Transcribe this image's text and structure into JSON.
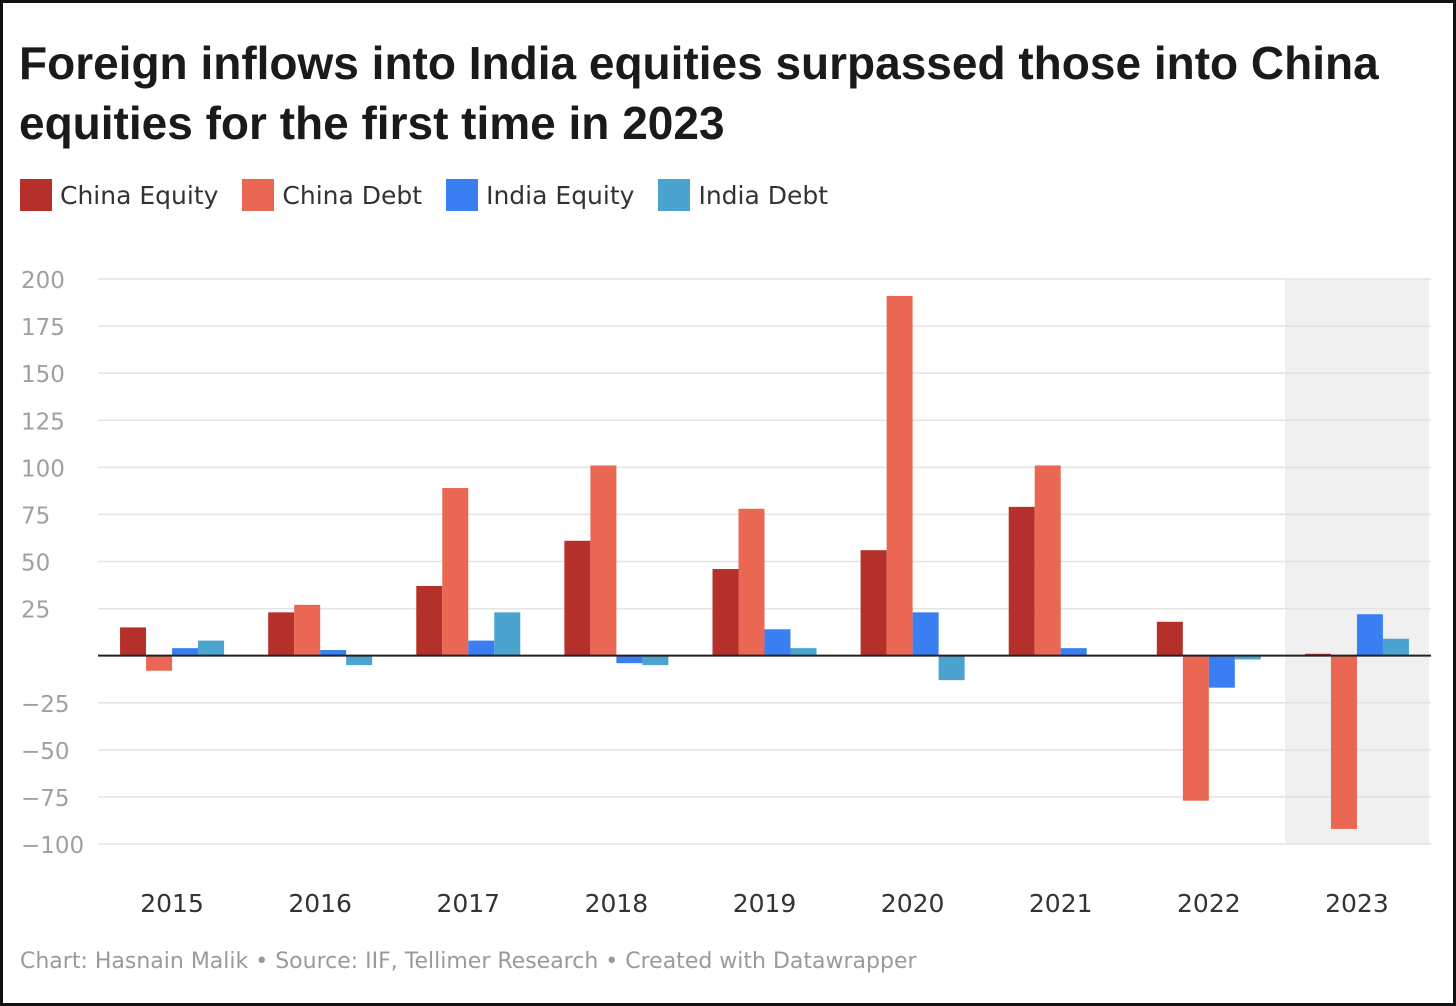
{
  "title": "Foreign inflows into India equities surpassed those into China equities for the first time in 2023",
  "footer": "Chart: Hasnain Malik • Source: IIF, Tellimer Research • Created with Datawrapper",
  "chart_data": {
    "type": "bar",
    "title": "Foreign inflows into India equities surpassed those into China equities for the first time in 2023",
    "xlabel": "",
    "ylabel": "",
    "ylim": [
      -100,
      200
    ],
    "yticks": [
      200,
      175,
      150,
      125,
      100,
      75,
      50,
      25,
      0,
      -25,
      -50,
      -75,
      -100
    ],
    "ytick_labels": [
      "200",
      "175",
      "150",
      "125",
      "100",
      "75",
      "50",
      "25",
      "",
      "−25",
      "−50",
      "−75",
      "−100"
    ],
    "grid": true,
    "legend_position": "top-left",
    "highlighted_category": "2023",
    "categories": [
      "2015",
      "2016",
      "2017",
      "2018",
      "2019",
      "2020",
      "2021",
      "2022",
      "2023"
    ],
    "series": [
      {
        "name": "China Equity",
        "color": "#b5302a",
        "values": [
          15,
          23,
          37,
          61,
          46,
          56,
          79,
          18,
          1
        ]
      },
      {
        "name": "China Debt",
        "color": "#ea6753",
        "values": [
          -8,
          27,
          89,
          101,
          78,
          191,
          101,
          -77,
          -92
        ]
      },
      {
        "name": "India Equity",
        "color": "#3a7ff2",
        "values": [
          4,
          3,
          8,
          -4,
          14,
          23,
          4,
          -17,
          22
        ]
      },
      {
        "name": "India Debt",
        "color": "#4aa4cf",
        "values": [
          8,
          -5,
          23,
          -5,
          4,
          -13,
          0,
          -2,
          9
        ]
      }
    ]
  }
}
